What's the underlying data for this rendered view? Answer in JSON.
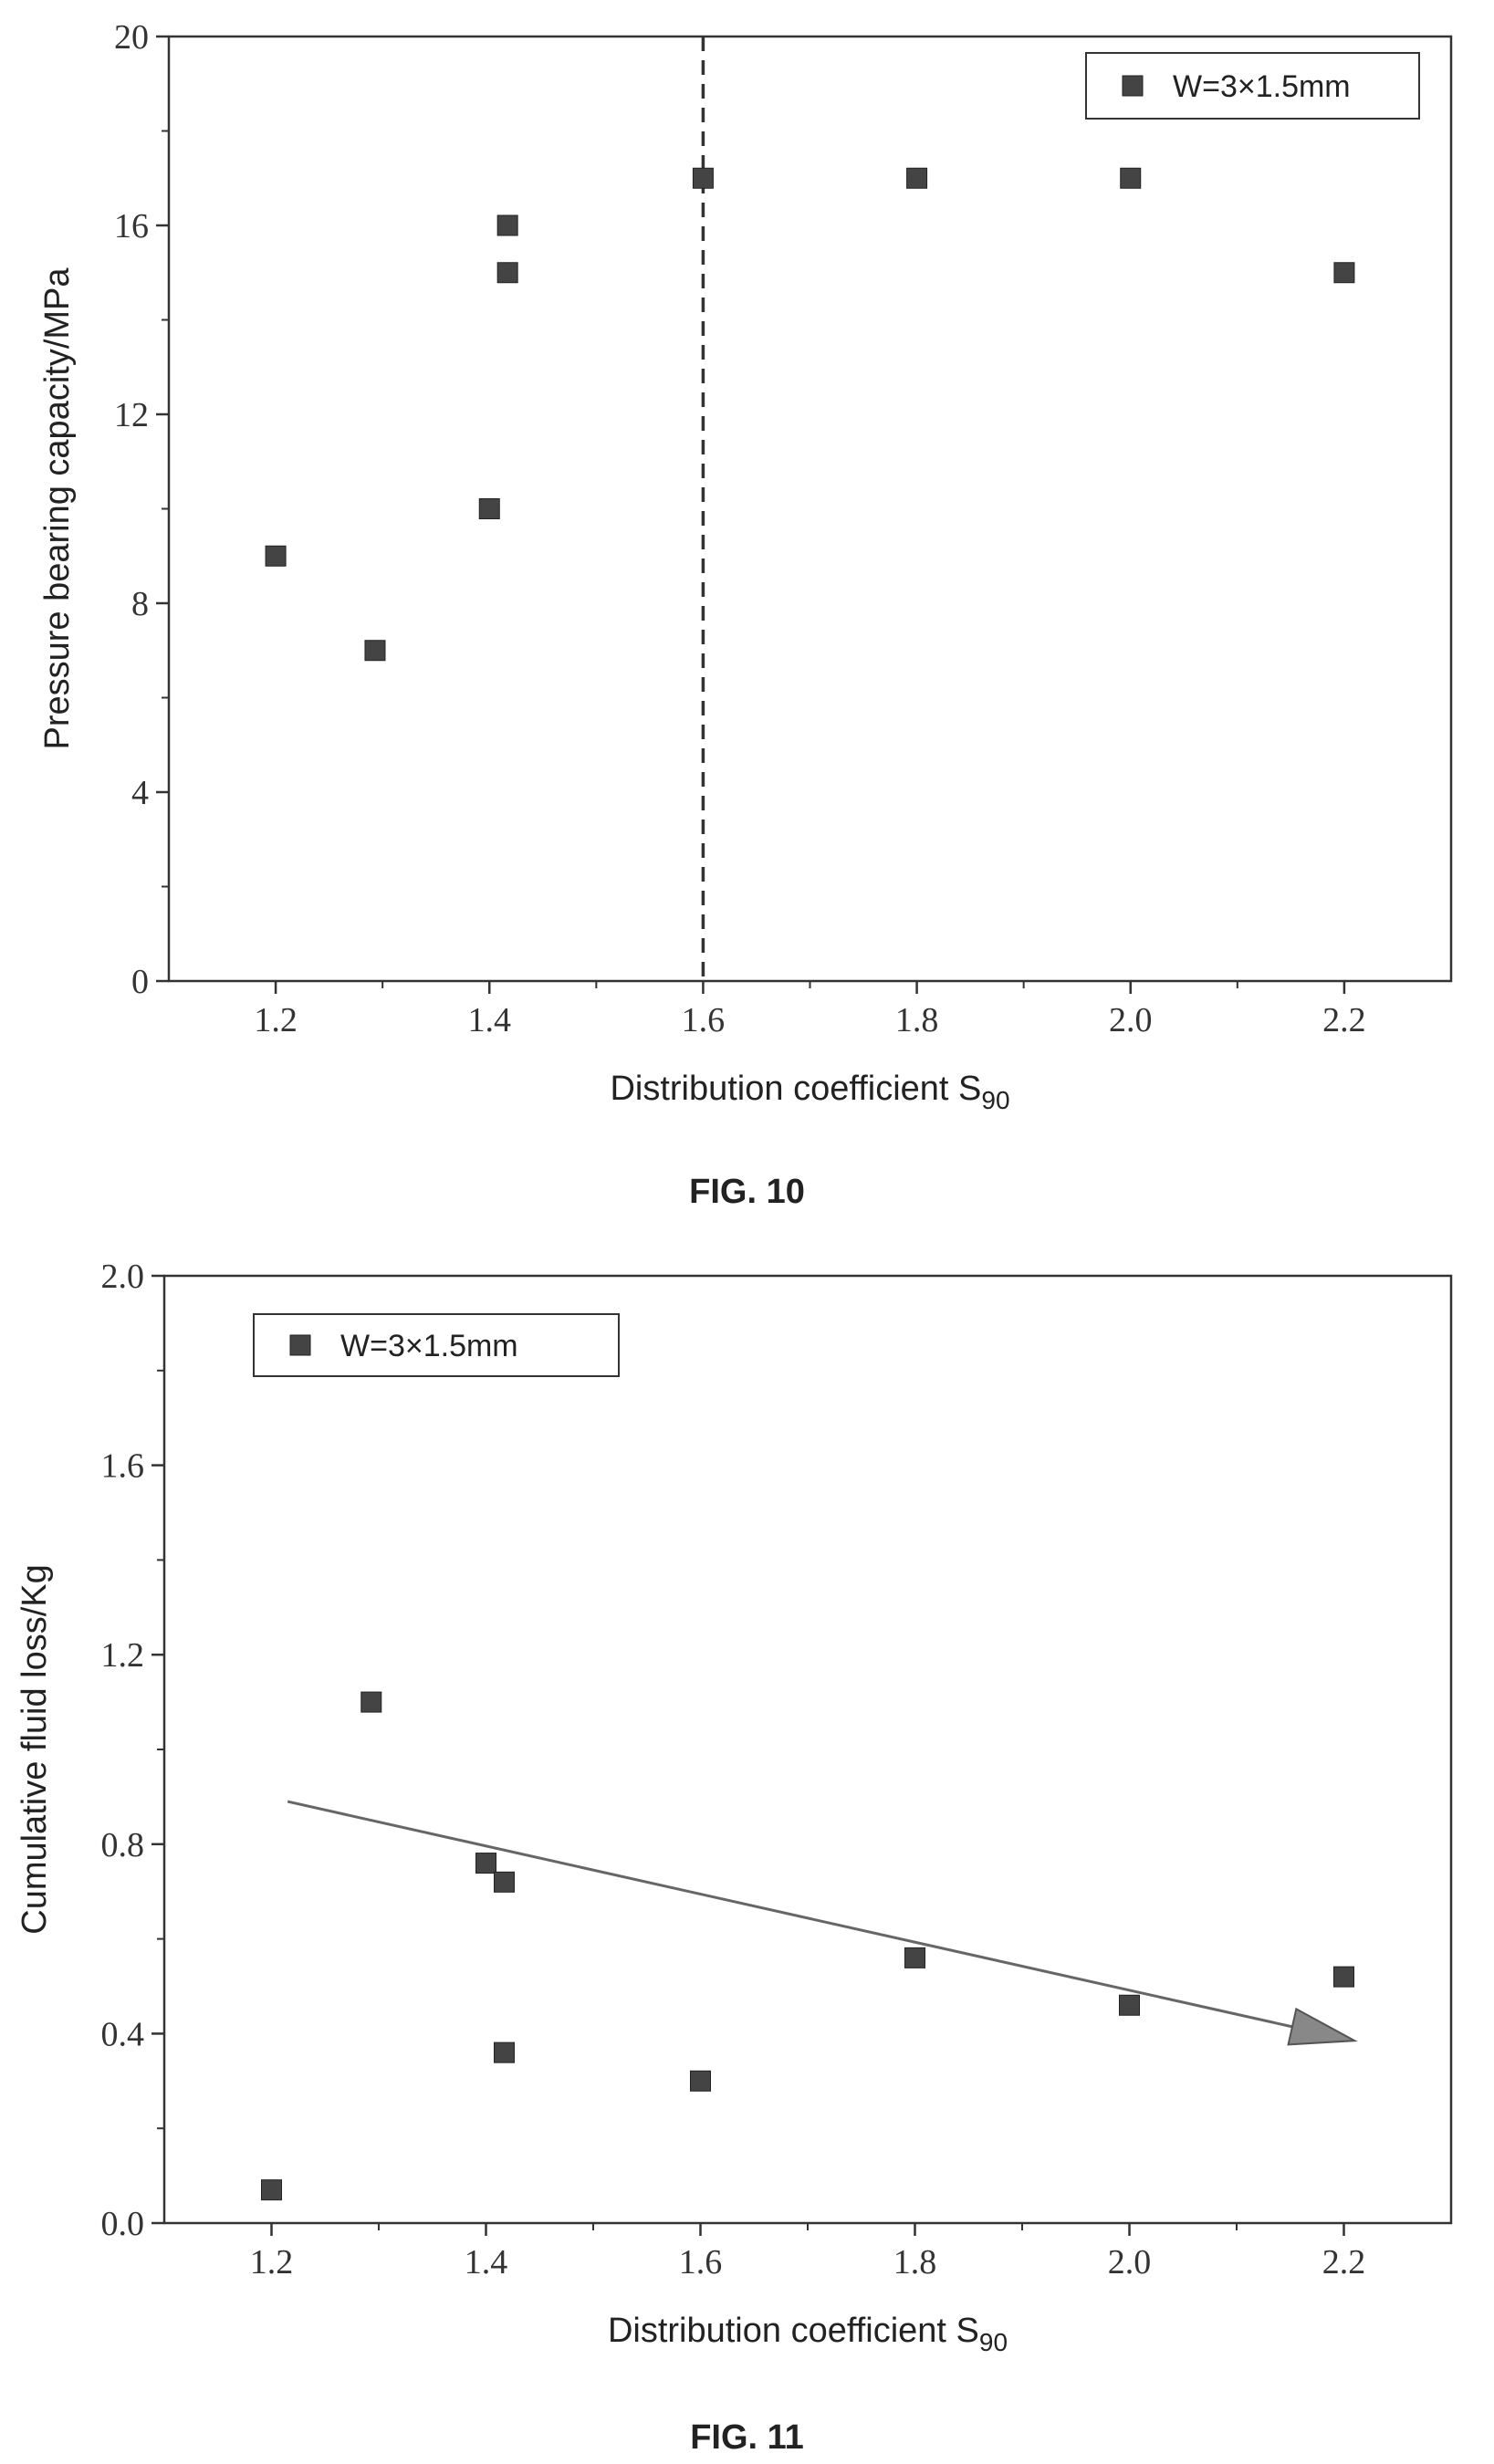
{
  "chart_data": [
    {
      "type": "scatter",
      "figure_caption": "FIG. 10",
      "xlabel": "Distribution coefficient S",
      "xlabel_sub": "90",
      "ylabel": "Pressure bearing capacity/MPa",
      "xlim": [
        1.1,
        2.3
      ],
      "ylim": [
        0,
        20
      ],
      "xticks": [
        1.2,
        1.4,
        1.6,
        1.8,
        2.0,
        2.2
      ],
      "xtick_labels": [
        "1.2",
        "1.4",
        "1.6",
        "1.8",
        "2.0",
        "2.2"
      ],
      "yticks": [
        0,
        4,
        8,
        12,
        16,
        20
      ],
      "ytick_labels": [
        "0",
        "4",
        "8",
        "12",
        "16",
        "20"
      ],
      "legend_position": "top-right",
      "reference_line": {
        "x": 1.6,
        "style": "dashed"
      },
      "series": [
        {
          "name": "W=3×1.5mm",
          "marker": "square",
          "color": "#444444",
          "x": [
            1.2,
            1.293,
            1.4,
            1.417,
            1.417,
            1.6,
            1.8,
            2.0,
            2.2
          ],
          "y": [
            9,
            7,
            10,
            15,
            16,
            17,
            17,
            17,
            15
          ]
        }
      ]
    },
    {
      "type": "scatter",
      "figure_caption": "FIG. 11",
      "xlabel": "Distribution coefficient S",
      "xlabel_sub": "90",
      "ylabel": "Cumulative fluid loss/Kg",
      "xlim": [
        1.1,
        2.3
      ],
      "ylim": [
        0,
        2.0
      ],
      "xticks": [
        1.2,
        1.4,
        1.6,
        1.8,
        2.0,
        2.2
      ],
      "xtick_labels": [
        "1.2",
        "1.4",
        "1.6",
        "1.8",
        "2.0",
        "2.2"
      ],
      "yticks": [
        0,
        0.4,
        0.8,
        1.2,
        1.6,
        2.0
      ],
      "ytick_labels": [
        "0.0",
        "0.4",
        "0.8",
        "1.2",
        "1.6",
        "2.0"
      ],
      "legend_position": "top-left",
      "trend_arrow": {
        "from": [
          1.215,
          0.89
        ],
        "to": [
          2.21,
          0.385
        ]
      },
      "series": [
        {
          "name": "W=3×1.5mm",
          "marker": "square",
          "color": "#444444",
          "x": [
            1.2,
            1.293,
            1.4,
            1.417,
            1.417,
            1.6,
            1.8,
            2.0,
            2.2
          ],
          "y": [
            0.07,
            1.1,
            0.76,
            0.72,
            0.36,
            0.3,
            0.56,
            0.46,
            0.52
          ]
        }
      ]
    }
  ]
}
